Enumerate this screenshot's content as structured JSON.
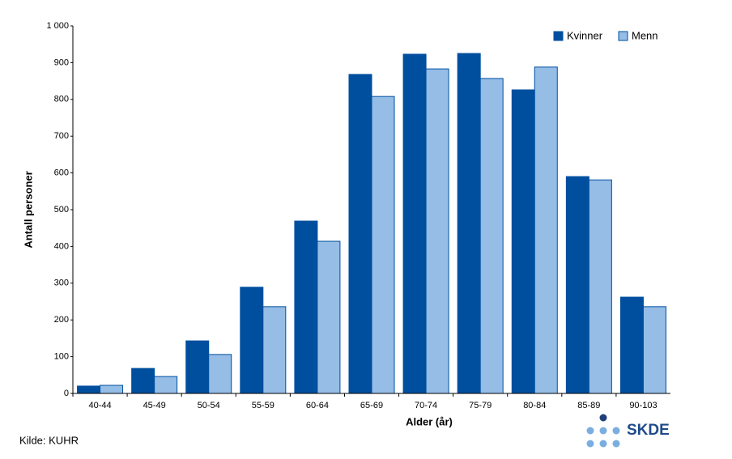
{
  "chart_data": {
    "type": "bar",
    "categories": [
      "40-44",
      "45-49",
      "50-54",
      "55-59",
      "60-64",
      "65-69",
      "70-74",
      "75-79",
      "80-84",
      "85-89",
      "90-103"
    ],
    "series": [
      {
        "name": "Kvinner",
        "color": "#004f9f",
        "values": [
          20,
          68,
          143,
          289,
          469,
          868,
          923,
          925,
          826,
          590,
          262
        ]
      },
      {
        "name": "Menn",
        "color": "#95bde6",
        "values": [
          22,
          46,
          106,
          236,
          414,
          808,
          883,
          857,
          888,
          581,
          236
        ]
      }
    ],
    "ylim": [
      0,
      1000
    ],
    "yticks": [
      0,
      100,
      200,
      300,
      400,
      500,
      600,
      700,
      800,
      900,
      {
        "value": 1000,
        "label": "1 000"
      }
    ],
    "xlabel": "Alder (år)",
    "ylabel": "Antall personer",
    "legend": "top-right",
    "source": "Kilde: KUHR",
    "logo": "SKDE"
  }
}
